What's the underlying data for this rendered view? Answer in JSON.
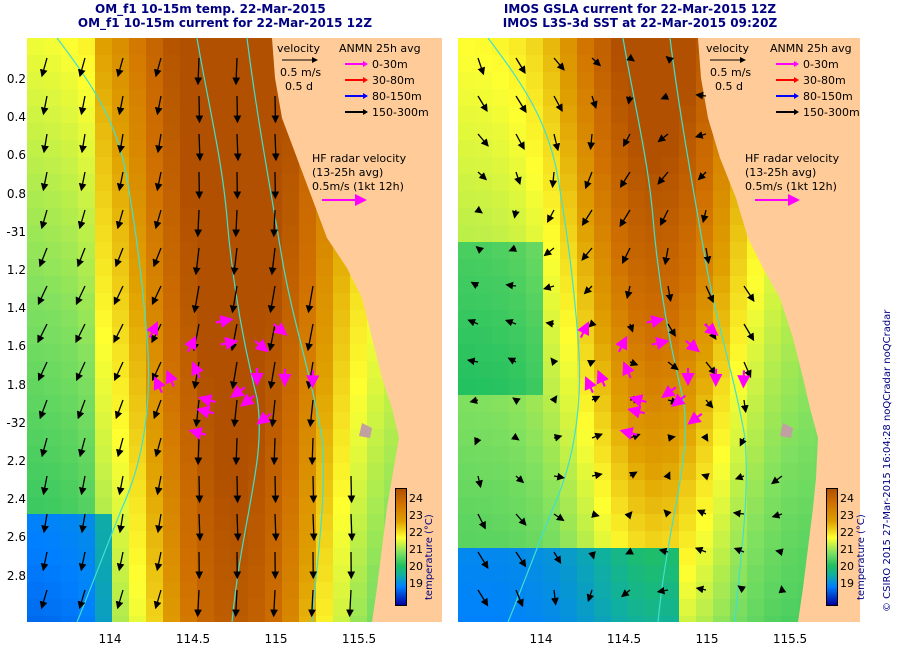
{
  "colors": {
    "land": "#ffcc99",
    "bathymetry": "#40e0d0",
    "arrow_black": "#000000",
    "arrow_magenta": "#ff00ff",
    "arrow_red": "#ff0000",
    "arrow_blue": "#0000ff",
    "title": "#000080",
    "coast_shade": "#c0a0a0"
  },
  "panels": [
    {
      "id": "left",
      "title_line1": "OM_f1 10-15m temp. 22-Mar-2015",
      "title_line2": "OM_f1 10-15m current for 22-Mar-2015 12Z"
    },
    {
      "id": "right",
      "title_line1": "IMOS GSLA current for 22-Mar-2015 12Z",
      "title_line2": "IMOS L3S-3d SST at 22-Mar-2015 09:20Z"
    }
  ],
  "y_axis_labels": [
    "0.2",
    "0.4",
    "0.6",
    "0.8",
    "-31",
    "1.2",
    "1.4",
    "1.6",
    "1.8",
    "-32",
    "2.2",
    "2.4",
    "2.6",
    "2.8"
  ],
  "x_axis_labels": [
    "114",
    "114.5",
    "115",
    "115.5"
  ],
  "legend": {
    "velocity_label": "velocity",
    "scale_line1": "0.5 m/s",
    "scale_line2": "0.5 d",
    "anmn_title": "ANMN 25h avg",
    "depths": [
      {
        "label": "0-30m",
        "color": "#ff00ff"
      },
      {
        "label": "30-80m",
        "color": "#ff0000"
      },
      {
        "label": "80-150m",
        "color": "#0000ff"
      },
      {
        "label": "150-300m",
        "color": "#000000"
      }
    ],
    "hf_line1": "HF radar velocity",
    "hf_line2": "(13-25h avg)",
    "hf_line3": "0.5m/s (1kt 12h)"
  },
  "colorbar": {
    "ticks": [
      "24",
      "23",
      "22",
      "21",
      "20",
      "19"
    ],
    "label": "temperature (°C)"
  },
  "credit": "© CSIRO 2015   27-Mar-2015 16:04:28 noQCradar noQCradar"
}
